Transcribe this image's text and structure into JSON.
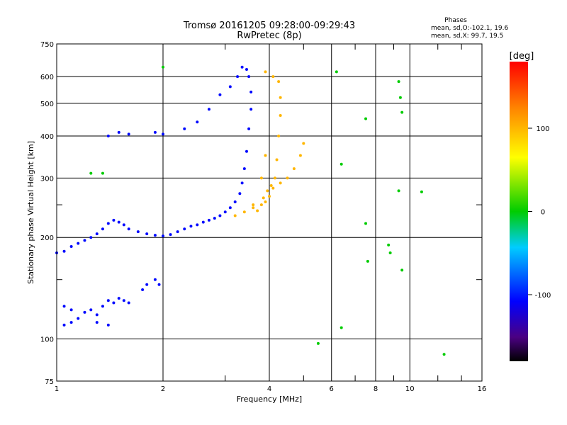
{
  "title": "Tromsø 20161205 09:28:00-09:29:43",
  "subtitle": "RwPretec (8p)",
  "stats": {
    "title": "Phases",
    "line_o": "mean, sd,O:-102.1, 19.6",
    "line_x": "mean, sd,X:  99.7, 19.5"
  },
  "chart_data": {
    "type": "scatter",
    "xlabel": "Frequency [MHz]",
    "ylabel": "Stationary phase Virtual Height [km]",
    "x_scale": "log2",
    "y_scale": "log",
    "xlim": [
      1,
      16
    ],
    "ylim": [
      75,
      750
    ],
    "x_ticks": [
      1,
      2,
      4,
      6,
      8,
      10,
      16
    ],
    "x_tick_labels": [
      "1",
      "2",
      "4",
      "6",
      "8",
      "10",
      "16"
    ],
    "x_minor_ticks": [
      3,
      5,
      7,
      9,
      12,
      14
    ],
    "y_ticks": [
      75,
      100,
      200,
      300,
      400,
      500,
      600,
      750
    ],
    "y_tick_labels": [
      "75",
      "100",
      "200",
      "300",
      "400",
      "500",
      "600",
      "750"
    ],
    "y_minor_ticks": [
      150,
      250
    ],
    "grid": true,
    "colorbar": {
      "label": "[deg]",
      "range": [
        -180,
        180
      ],
      "ticks": [
        100,
        0,
        -100
      ],
      "tick_labels": [
        "100",
        "0",
        "-100"
      ],
      "colormap": "rainbow"
    },
    "series": [
      {
        "mode": "O",
        "color_value": -105,
        "points": [
          [
            1.0,
            180
          ],
          [
            1.05,
            182
          ],
          [
            1.1,
            188
          ],
          [
            1.15,
            192
          ],
          [
            1.2,
            196
          ],
          [
            1.25,
            200
          ],
          [
            1.3,
            205
          ],
          [
            1.35,
            212
          ],
          [
            1.4,
            220
          ],
          [
            1.45,
            225
          ],
          [
            1.5,
            222
          ],
          [
            1.55,
            218
          ],
          [
            1.6,
            212
          ],
          [
            1.7,
            208
          ],
          [
            1.8,
            205
          ],
          [
            1.9,
            203
          ],
          [
            2.0,
            202
          ],
          [
            2.1,
            204
          ],
          [
            2.2,
            208
          ],
          [
            2.3,
            212
          ],
          [
            2.4,
            216
          ],
          [
            2.5,
            218
          ],
          [
            2.6,
            222
          ],
          [
            2.7,
            225
          ],
          [
            2.8,
            228
          ],
          [
            2.9,
            232
          ],
          [
            3.0,
            238
          ],
          [
            3.1,
            245
          ],
          [
            3.2,
            255
          ],
          [
            3.3,
            270
          ],
          [
            3.35,
            290
          ],
          [
            3.4,
            320
          ],
          [
            3.45,
            360
          ],
          [
            3.5,
            420
          ],
          [
            3.55,
            480
          ],
          [
            3.55,
            540
          ],
          [
            3.5,
            600
          ],
          [
            3.45,
            630
          ],
          [
            1.4,
            400
          ],
          [
            1.5,
            410
          ],
          [
            1.6,
            405
          ],
          [
            1.9,
            410
          ],
          [
            2.0,
            405
          ],
          [
            2.3,
            420
          ],
          [
            2.5,
            440
          ],
          [
            2.7,
            480
          ],
          [
            2.9,
            530
          ],
          [
            3.1,
            560
          ],
          [
            3.25,
            600
          ],
          [
            3.35,
            640
          ],
          [
            1.05,
            110
          ],
          [
            1.1,
            112
          ],
          [
            1.15,
            115
          ],
          [
            1.2,
            120
          ],
          [
            1.25,
            122
          ],
          [
            1.3,
            118
          ],
          [
            1.35,
            125
          ],
          [
            1.4,
            130
          ],
          [
            1.45,
            128
          ],
          [
            1.5,
            132
          ],
          [
            1.55,
            130
          ],
          [
            1.6,
            128
          ],
          [
            1.3,
            112
          ],
          [
            1.4,
            110
          ],
          [
            1.05,
            125
          ],
          [
            1.1,
            122
          ],
          [
            1.75,
            140
          ],
          [
            1.8,
            145
          ],
          [
            1.9,
            150
          ],
          [
            1.95,
            145
          ]
        ]
      },
      {
        "mode": "X",
        "color_value": 100,
        "points": [
          [
            3.2,
            232
          ],
          [
            3.4,
            238
          ],
          [
            3.6,
            245
          ],
          [
            3.8,
            250
          ],
          [
            3.9,
            255
          ],
          [
            4.0,
            265
          ],
          [
            4.1,
            280
          ],
          [
            4.15,
            300
          ],
          [
            4.2,
            340
          ],
          [
            4.25,
            400
          ],
          [
            4.3,
            460
          ],
          [
            4.3,
            520
          ],
          [
            4.25,
            580
          ],
          [
            4.1,
            600
          ],
          [
            3.9,
            620
          ],
          [
            3.7,
            240
          ],
          [
            3.85,
            262
          ],
          [
            3.95,
            275
          ],
          [
            4.05,
            285
          ],
          [
            4.3,
            290
          ],
          [
            4.5,
            300
          ],
          [
            4.7,
            320
          ],
          [
            4.9,
            350
          ],
          [
            5.0,
            380
          ],
          [
            3.6,
            250
          ],
          [
            3.8,
            300
          ],
          [
            3.9,
            350
          ]
        ]
      },
      {
        "mode": "other",
        "color_value": 0,
        "points": [
          [
            6.2,
            620
          ],
          [
            6.4,
            330
          ],
          [
            6.4,
            108
          ],
          [
            7.5,
            450
          ],
          [
            7.5,
            220
          ],
          [
            7.6,
            170
          ],
          [
            8.7,
            190
          ],
          [
            8.8,
            180
          ],
          [
            9.3,
            580
          ],
          [
            9.4,
            520
          ],
          [
            9.5,
            470
          ],
          [
            9.3,
            275
          ],
          [
            9.5,
            160
          ],
          [
            10.8,
            273
          ],
          [
            12.5,
            90
          ],
          [
            5.5,
            97
          ],
          [
            2.0,
            640
          ],
          [
            1.25,
            310
          ],
          [
            1.35,
            310
          ]
        ]
      }
    ]
  }
}
